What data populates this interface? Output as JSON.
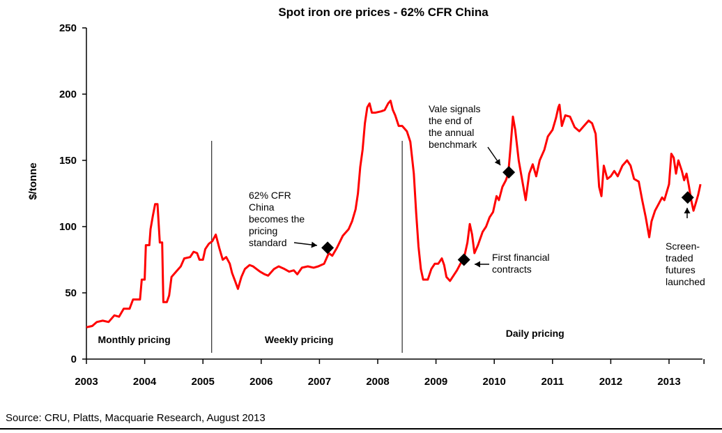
{
  "chart_data": {
    "type": "line",
    "title": "Spot iron ore prices - 62% CFR China",
    "ylabel": "$/tonne",
    "xlabel": "",
    "ylim": [
      0,
      250
    ],
    "xlim": [
      2003,
      2013.6
    ],
    "yticks": [
      0,
      50,
      100,
      150,
      200,
      250
    ],
    "xticks": [
      2003,
      2004,
      2005,
      2006,
      2007,
      2008,
      2009,
      2010,
      2011,
      2012,
      2013
    ],
    "line_color": "#ff0000",
    "series": [
      {
        "name": "Spot iron ore price",
        "points": [
          [
            2003.0,
            24
          ],
          [
            2003.1,
            25
          ],
          [
            2003.18,
            28
          ],
          [
            2003.28,
            29
          ],
          [
            2003.38,
            28
          ],
          [
            2003.48,
            33
          ],
          [
            2003.56,
            32
          ],
          [
            2003.64,
            38
          ],
          [
            2003.74,
            38
          ],
          [
            2003.8,
            45
          ],
          [
            2003.92,
            45
          ],
          [
            2003.95,
            60
          ],
          [
            2004.0,
            60
          ],
          [
            2004.02,
            86
          ],
          [
            2004.08,
            86
          ],
          [
            2004.1,
            98
          ],
          [
            2004.14,
            108
          ],
          [
            2004.18,
            117
          ],
          [
            2004.22,
            117
          ],
          [
            2004.26,
            88
          ],
          [
            2004.3,
            88
          ],
          [
            2004.32,
            43
          ],
          [
            2004.38,
            43
          ],
          [
            2004.42,
            48
          ],
          [
            2004.46,
            62
          ],
          [
            2004.54,
            66
          ],
          [
            2004.62,
            70
          ],
          [
            2004.68,
            76
          ],
          [
            2004.78,
            77
          ],
          [
            2004.84,
            81
          ],
          [
            2004.9,
            80
          ],
          [
            2004.94,
            75
          ],
          [
            2005.0,
            75
          ],
          [
            2005.04,
            83
          ],
          [
            2005.1,
            87
          ],
          [
            2005.16,
            89
          ],
          [
            2005.22,
            94
          ],
          [
            2005.28,
            84
          ],
          [
            2005.34,
            75
          ],
          [
            2005.4,
            77
          ],
          [
            2005.46,
            72
          ],
          [
            2005.5,
            65
          ],
          [
            2005.56,
            58
          ],
          [
            2005.6,
            53
          ],
          [
            2005.66,
            62
          ],
          [
            2005.72,
            68
          ],
          [
            2005.8,
            71
          ],
          [
            2005.86,
            70
          ],
          [
            2005.92,
            68
          ],
          [
            2005.98,
            66
          ],
          [
            2006.06,
            64
          ],
          [
            2006.12,
            63
          ],
          [
            2006.22,
            68
          ],
          [
            2006.3,
            70
          ],
          [
            2006.4,
            68
          ],
          [
            2006.48,
            66
          ],
          [
            2006.56,
            67
          ],
          [
            2006.62,
            64
          ],
          [
            2006.7,
            69
          ],
          [
            2006.8,
            70
          ],
          [
            2006.9,
            69
          ],
          [
            2006.98,
            70
          ],
          [
            2007.08,
            72
          ],
          [
            2007.16,
            80
          ],
          [
            2007.22,
            78
          ],
          [
            2007.3,
            84
          ],
          [
            2007.4,
            93
          ],
          [
            2007.5,
            98
          ],
          [
            2007.56,
            104
          ],
          [
            2007.62,
            113
          ],
          [
            2007.66,
            125
          ],
          [
            2007.7,
            145
          ],
          [
            2007.74,
            158
          ],
          [
            2007.78,
            178
          ],
          [
            2007.82,
            190
          ],
          [
            2007.86,
            193
          ],
          [
            2007.9,
            186
          ],
          [
            2007.96,
            186
          ],
          [
            2008.06,
            187
          ],
          [
            2008.12,
            188
          ],
          [
            2008.18,
            193
          ],
          [
            2008.22,
            195
          ],
          [
            2008.26,
            188
          ],
          [
            2008.3,
            184
          ],
          [
            2008.36,
            176
          ],
          [
            2008.42,
            176
          ],
          [
            2008.5,
            172
          ],
          [
            2008.56,
            164
          ],
          [
            2008.62,
            140
          ],
          [
            2008.66,
            110
          ],
          [
            2008.7,
            85
          ],
          [
            2008.74,
            68
          ],
          [
            2008.78,
            60
          ],
          [
            2008.86,
            60
          ],
          [
            2008.92,
            68
          ],
          [
            2008.98,
            72
          ],
          [
            2009.04,
            72
          ],
          [
            2009.1,
            76
          ],
          [
            2009.14,
            71
          ],
          [
            2009.18,
            62
          ],
          [
            2009.24,
            59
          ],
          [
            2009.3,
            63
          ],
          [
            2009.36,
            67
          ],
          [
            2009.42,
            72
          ],
          [
            2009.48,
            76
          ],
          [
            2009.54,
            88
          ],
          [
            2009.58,
            102
          ],
          [
            2009.62,
            94
          ],
          [
            2009.66,
            80
          ],
          [
            2009.72,
            86
          ],
          [
            2009.8,
            96
          ],
          [
            2009.86,
            100
          ],
          [
            2009.92,
            107
          ],
          [
            2009.98,
            111
          ],
          [
            2010.04,
            123
          ],
          [
            2010.08,
            120
          ],
          [
            2010.14,
            130
          ],
          [
            2010.2,
            135
          ],
          [
            2010.24,
            140
          ],
          [
            2010.28,
            160
          ],
          [
            2010.32,
            183
          ],
          [
            2010.36,
            173
          ],
          [
            2010.42,
            150
          ],
          [
            2010.48,
            135
          ],
          [
            2010.54,
            120
          ],
          [
            2010.6,
            140
          ],
          [
            2010.66,
            147
          ],
          [
            2010.72,
            138
          ],
          [
            2010.78,
            150
          ],
          [
            2010.86,
            158
          ],
          [
            2010.92,
            168
          ],
          [
            2011.0,
            173
          ],
          [
            2011.06,
            182
          ],
          [
            2011.1,
            190
          ],
          [
            2011.12,
            192
          ],
          [
            2011.16,
            176
          ],
          [
            2011.22,
            184
          ],
          [
            2011.3,
            183
          ],
          [
            2011.38,
            175
          ],
          [
            2011.46,
            172
          ],
          [
            2011.54,
            176
          ],
          [
            2011.62,
            180
          ],
          [
            2011.68,
            178
          ],
          [
            2011.74,
            170
          ],
          [
            2011.8,
            130
          ],
          [
            2011.84,
            123
          ],
          [
            2011.88,
            146
          ],
          [
            2011.94,
            136
          ],
          [
            2012.0,
            138
          ],
          [
            2012.06,
            142
          ],
          [
            2012.12,
            138
          ],
          [
            2012.2,
            146
          ],
          [
            2012.28,
            150
          ],
          [
            2012.34,
            146
          ],
          [
            2012.4,
            136
          ],
          [
            2012.48,
            134
          ],
          [
            2012.54,
            120
          ],
          [
            2012.6,
            107
          ],
          [
            2012.66,
            92
          ],
          [
            2012.7,
            104
          ],
          [
            2012.76,
            112
          ],
          [
            2012.82,
            117
          ],
          [
            2012.88,
            122
          ],
          [
            2012.92,
            120
          ],
          [
            2013.0,
            132
          ],
          [
            2013.04,
            155
          ],
          [
            2013.08,
            152
          ],
          [
            2013.12,
            140
          ],
          [
            2013.16,
            150
          ],
          [
            2013.22,
            142
          ],
          [
            2013.26,
            135
          ],
          [
            2013.3,
            140
          ],
          [
            2013.34,
            131
          ],
          [
            2013.38,
            120
          ],
          [
            2013.42,
            112
          ],
          [
            2013.46,
            118
          ],
          [
            2013.5,
            124
          ],
          [
            2013.54,
            132
          ]
        ]
      }
    ],
    "dividers": [
      2005.15,
      2008.42
    ],
    "regions": [
      {
        "label": "Monthly pricing",
        "x": 2003.82
      },
      {
        "label": "Weekly pricing",
        "x": 2006.65
      },
      {
        "label": "Daily pricing",
        "x": 2010.7
      }
    ],
    "markers": [
      {
        "x": 2007.14,
        "y": 84,
        "lines": [
          "62% CFR",
          "China",
          "becomes the",
          "pricing",
          "standard"
        ]
      },
      {
        "x": 2009.48,
        "y": 75,
        "lines": [
          "First financial",
          "contracts"
        ]
      },
      {
        "x": 2010.25,
        "y": 141,
        "lines": [
          "Vale signals",
          "the end of",
          "the annual",
          "benchmark"
        ]
      },
      {
        "x": 2013.32,
        "y": 122,
        "lines": [
          "Screen-",
          "traded",
          "futures",
          "launched"
        ]
      }
    ]
  },
  "source": "Source: CRU, Platts, Macquarie Research, August 2013"
}
